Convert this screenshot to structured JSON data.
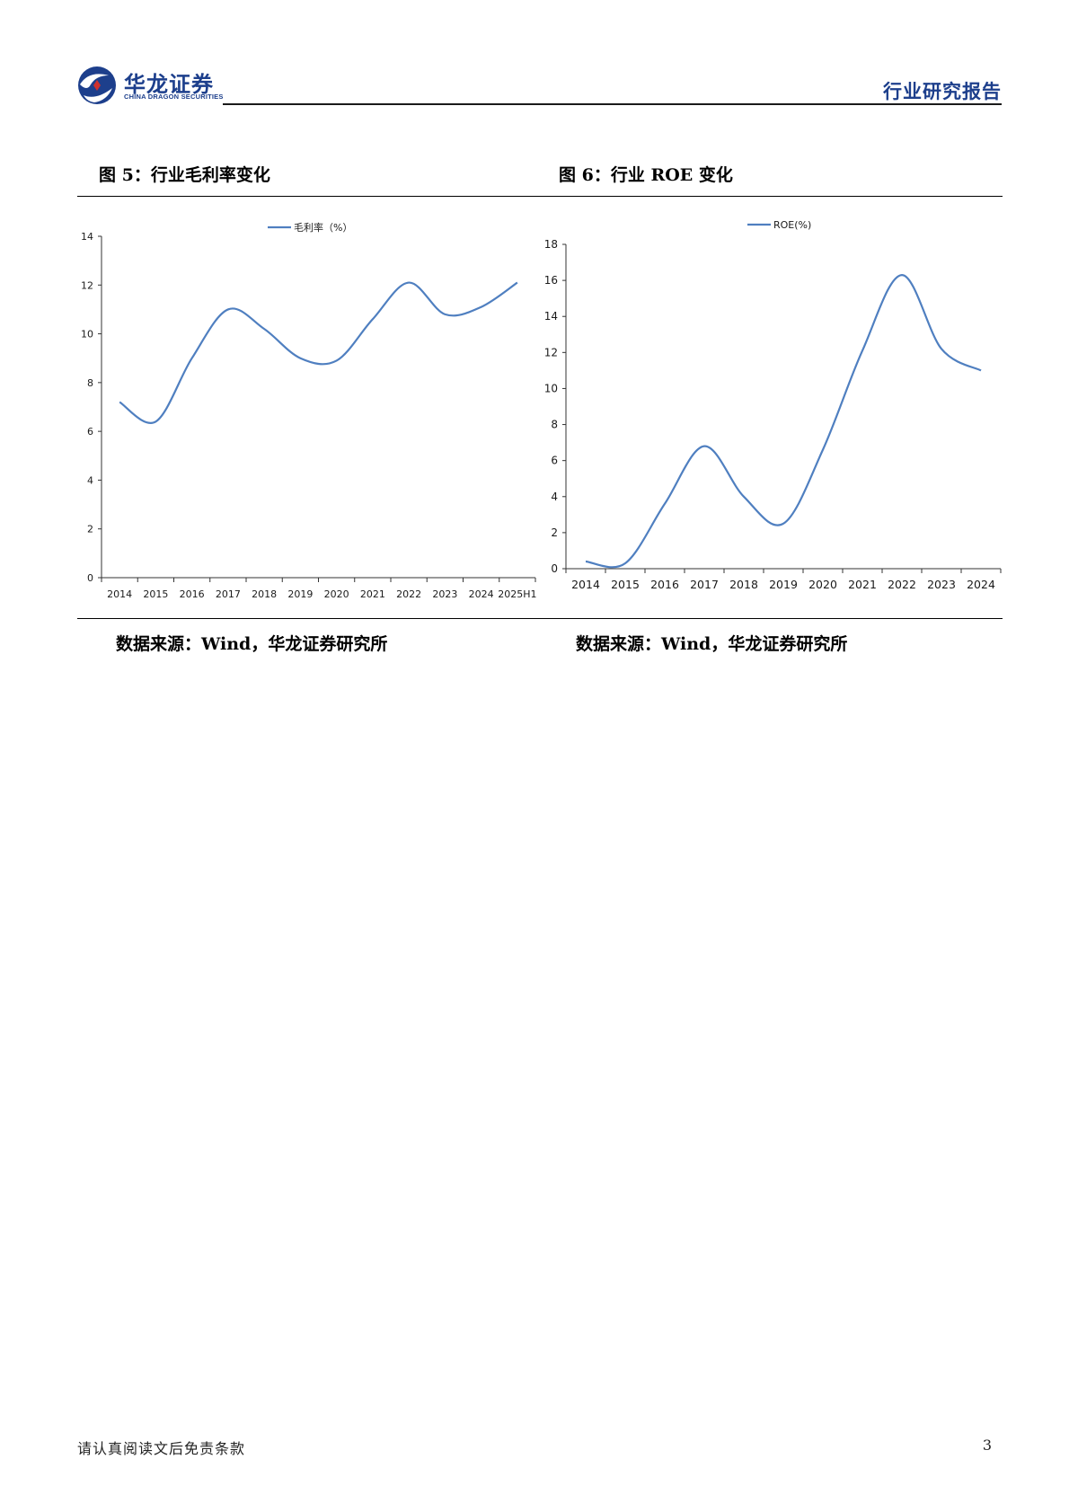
{
  "header": {
    "logo_text": "华龙证券",
    "logo_subtext": "CHINA DRAGON SECURITIES",
    "report_type": "行业研究报告"
  },
  "figures": {
    "left_title": "图 5：行业毛利率变化",
    "right_title": "图 6：行业 ROE 变化",
    "left_source": "数据来源：Wind，华龙证券研究所",
    "right_source": "数据来源：Wind，华龙证券研究所"
  },
  "colors": {
    "line": "#4f7fc0",
    "brand": "#1d3f8c",
    "accent_red": "#d0312d"
  },
  "icons": {
    "logo": "dragon-logo-icon"
  },
  "chart_data": [
    {
      "type": "line",
      "title": "",
      "categories": [
        "2014",
        "2015",
        "2016",
        "2017",
        "2018",
        "2019",
        "2020",
        "2021",
        "2022",
        "2023",
        "2024",
        "2025H1"
      ],
      "series": [
        {
          "name": "毛利率（%）",
          "values": [
            7.2,
            6.4,
            9.0,
            11.0,
            10.2,
            9.0,
            8.9,
            10.6,
            12.1,
            10.8,
            11.1,
            12.1
          ]
        }
      ],
      "ylim": [
        0,
        14
      ],
      "yticks": [
        "0",
        "2",
        "4",
        "6",
        "8",
        "10",
        "12",
        "14"
      ],
      "grid": false,
      "legend": "top-center"
    },
    {
      "type": "line",
      "title": "",
      "categories": [
        "2014",
        "2015",
        "2016",
        "2017",
        "2018",
        "2019",
        "2020",
        "2021",
        "2022",
        "2023",
        "2024"
      ],
      "series": [
        {
          "name": "ROE(%)",
          "values": [
            0.4,
            0.3,
            3.6,
            6.8,
            4.0,
            2.5,
            6.6,
            12.1,
            16.3,
            12.2,
            11.0
          ]
        }
      ],
      "ylim": [
        0,
        18
      ],
      "yticks": [
        "0",
        "2",
        "4",
        "6",
        "8",
        "10",
        "12",
        "14",
        "16",
        "18"
      ],
      "grid": false,
      "legend": "top-center"
    }
  ],
  "footer": {
    "disclaimer": "请认真阅读文后免责条款",
    "page_number": "3"
  }
}
